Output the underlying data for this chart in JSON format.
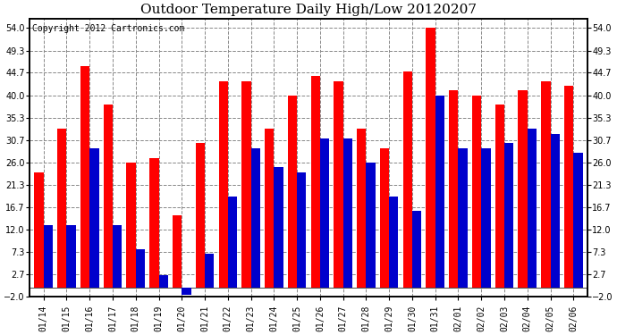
{
  "title": "Outdoor Temperature Daily High/Low 20120207",
  "copyright": "Copyright 2012 Cartronics.com",
  "dates": [
    "01/14",
    "01/15",
    "01/16",
    "01/17",
    "01/18",
    "01/19",
    "01/20",
    "01/21",
    "01/22",
    "01/23",
    "01/24",
    "01/25",
    "01/26",
    "01/27",
    "01/28",
    "01/29",
    "01/30",
    "01/31",
    "02/01",
    "02/02",
    "02/03",
    "02/04",
    "02/05",
    "02/06"
  ],
  "highs": [
    24.0,
    33.0,
    46.0,
    38.0,
    26.0,
    27.0,
    15.0,
    30.0,
    43.0,
    43.0,
    33.0,
    40.0,
    44.0,
    43.0,
    33.0,
    29.0,
    45.0,
    54.0,
    41.0,
    40.0,
    38.0,
    41.0,
    43.0,
    42.0
  ],
  "lows": [
    13.0,
    13.0,
    29.0,
    13.0,
    8.0,
    2.5,
    -1.5,
    7.0,
    19.0,
    29.0,
    25.0,
    24.0,
    31.0,
    31.0,
    26.0,
    19.0,
    16.0,
    40.0,
    29.0,
    29.0,
    30.0,
    33.0,
    32.0,
    28.0
  ],
  "high_color": "#ff0000",
  "low_color": "#0000cc",
  "ylim": [
    -2.0,
    56.0
  ],
  "yticks": [
    -2.0,
    2.7,
    7.3,
    12.0,
    16.7,
    21.3,
    26.0,
    30.7,
    35.3,
    40.0,
    44.7,
    49.3,
    54.0
  ],
  "bg_color": "#ffffff",
  "grid_color": "#888888",
  "bar_width": 0.4,
  "title_fontsize": 11,
  "tick_fontsize": 7,
  "copyright_fontsize": 7
}
